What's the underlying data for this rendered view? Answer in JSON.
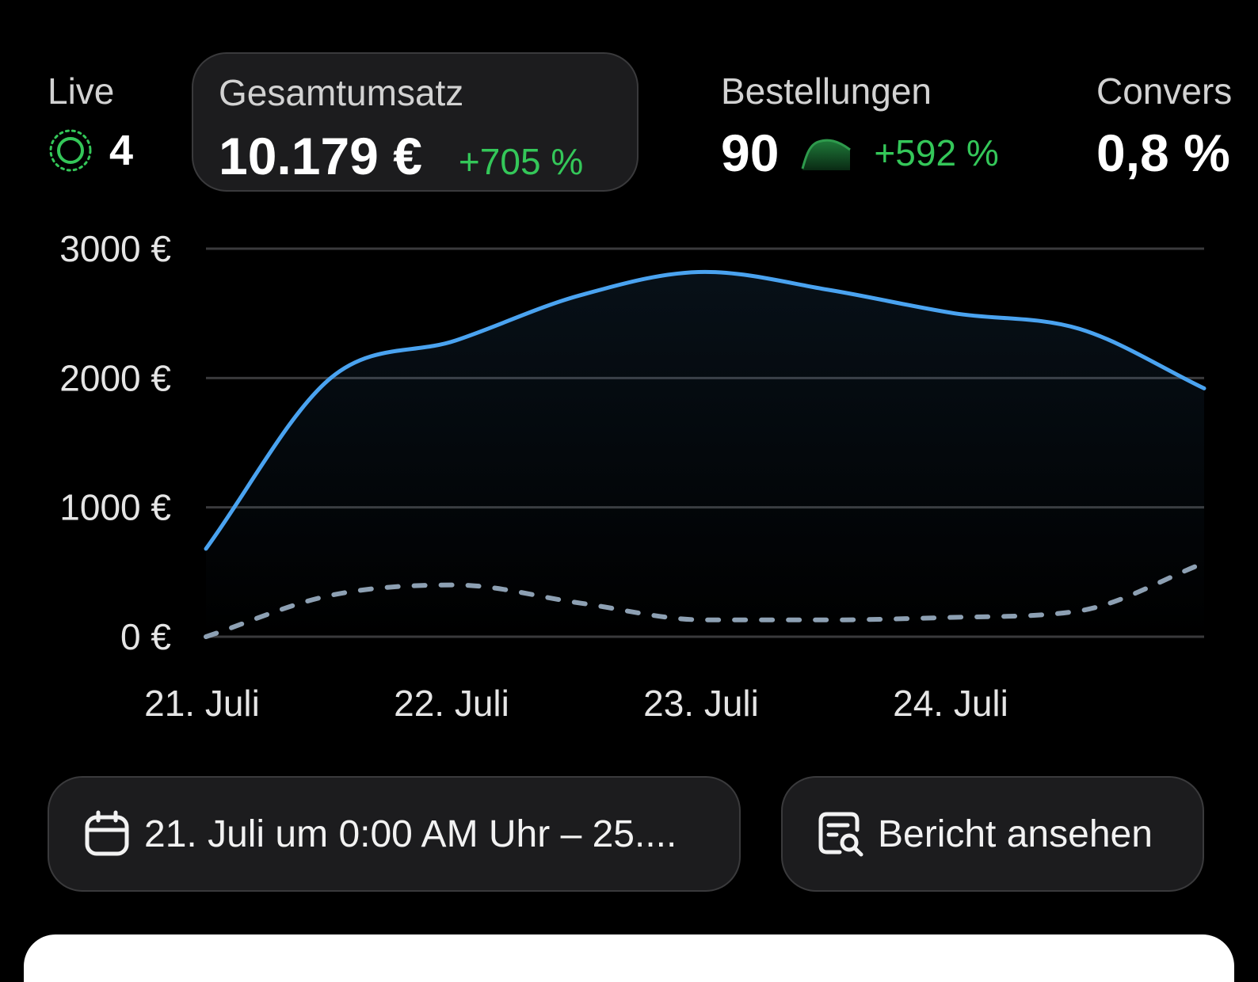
{
  "metrics": {
    "live": {
      "label": "Live",
      "count": "4"
    },
    "total_sales": {
      "label": "Gesamtumsatz",
      "value": "10.179 €",
      "change": "+705 %"
    },
    "orders": {
      "label": "Bestellungen",
      "value": "90",
      "change": "+592 %"
    },
    "conversion": {
      "label": "Convers",
      "value": "0,8 %"
    }
  },
  "icons": {
    "live": "live-pulse-icon",
    "orders_trend": "sparkline-icon",
    "date": "calendar-icon",
    "report": "report-search-icon"
  },
  "colors": {
    "accent_blue": "#4aa3f0",
    "comparison": "#8da0b3",
    "positive": "#34c759"
  },
  "chart_data": {
    "type": "line",
    "x": [
      "21. Juli",
      "21. Juli 12:00",
      "22. Juli",
      "22. Juli 12:00",
      "23. Juli",
      "23. Juli 12:00",
      "24. Juli",
      "24. Juli 12:00",
      "25. Juli"
    ],
    "x_ticks": [
      "21. Juli",
      "22. Juli",
      "23. Juli",
      "24. Juli"
    ],
    "y_ticks": [
      "0 €",
      "1000 €",
      "2000 €",
      "3000 €"
    ],
    "ylim": [
      0,
      3000
    ],
    "grid": true,
    "series": [
      {
        "values": [
          680,
          2000,
          2290,
          2640,
          2820,
          2680,
          2500,
          2380,
          1920
        ],
        "color": "#4aa3f0",
        "style": "solid",
        "fill": true
      },
      {
        "values": [
          0,
          320,
          400,
          260,
          130,
          130,
          150,
          200,
          570
        ],
        "color": "#8da0b3",
        "style": "dashed"
      }
    ]
  },
  "actions": {
    "date_range": "21. Juli um 0:00 AM Uhr – 25....",
    "report": "Bericht ansehen"
  }
}
